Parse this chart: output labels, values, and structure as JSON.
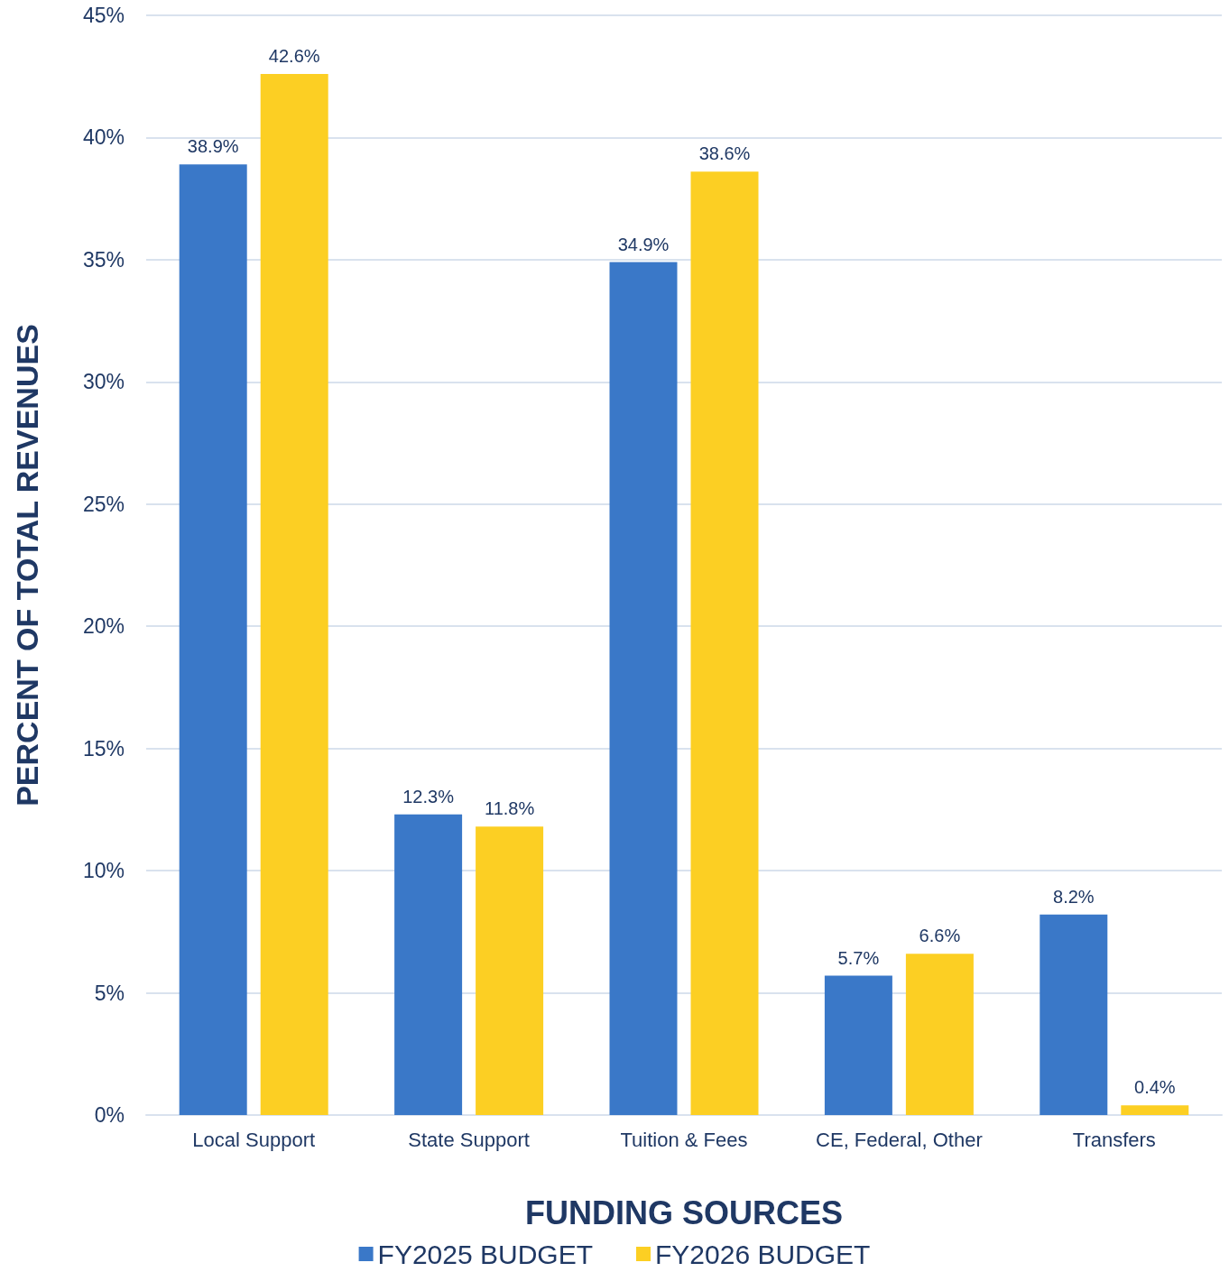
{
  "chart_data": {
    "type": "bar",
    "xlabel": "FUNDING SOURCES",
    "ylabel": "PERCENT OF TOTAL REVENUES",
    "categories": [
      "Local Support",
      "State Support",
      "Tuition & Fees",
      "CE, Federal, Other",
      "Transfers"
    ],
    "series": [
      {
        "name": "FY2025 BUDGET",
        "color": "#3a78c8",
        "values": [
          38.9,
          12.3,
          34.9,
          5.7,
          8.2
        ],
        "value_labels": [
          "38.9%",
          "12.3%",
          "34.9%",
          "5.7%",
          "8.2%"
        ]
      },
      {
        "name": "FY2026 BUDGET",
        "color": "#fccf23",
        "values": [
          42.6,
          11.8,
          38.6,
          6.6,
          0.4
        ],
        "value_labels": [
          "42.6%",
          "11.8%",
          "38.6%",
          "6.6%",
          "0.4%"
        ]
      }
    ],
    "ylim": [
      0,
      45
    ],
    "yticks": [
      {
        "value": 0,
        "label": "0%"
      },
      {
        "value": 5,
        "label": "5%"
      },
      {
        "value": 10,
        "label": "10%"
      },
      {
        "value": 15,
        "label": "15%"
      },
      {
        "value": 20,
        "label": "20%"
      },
      {
        "value": 25,
        "label": "25%"
      },
      {
        "value": 30,
        "label": "30%"
      },
      {
        "value": 35,
        "label": "35%"
      },
      {
        "value": 40,
        "label": "40%"
      },
      {
        "value": 45,
        "label": "45%"
      }
    ],
    "grid": "y",
    "legend": "bottom"
  }
}
